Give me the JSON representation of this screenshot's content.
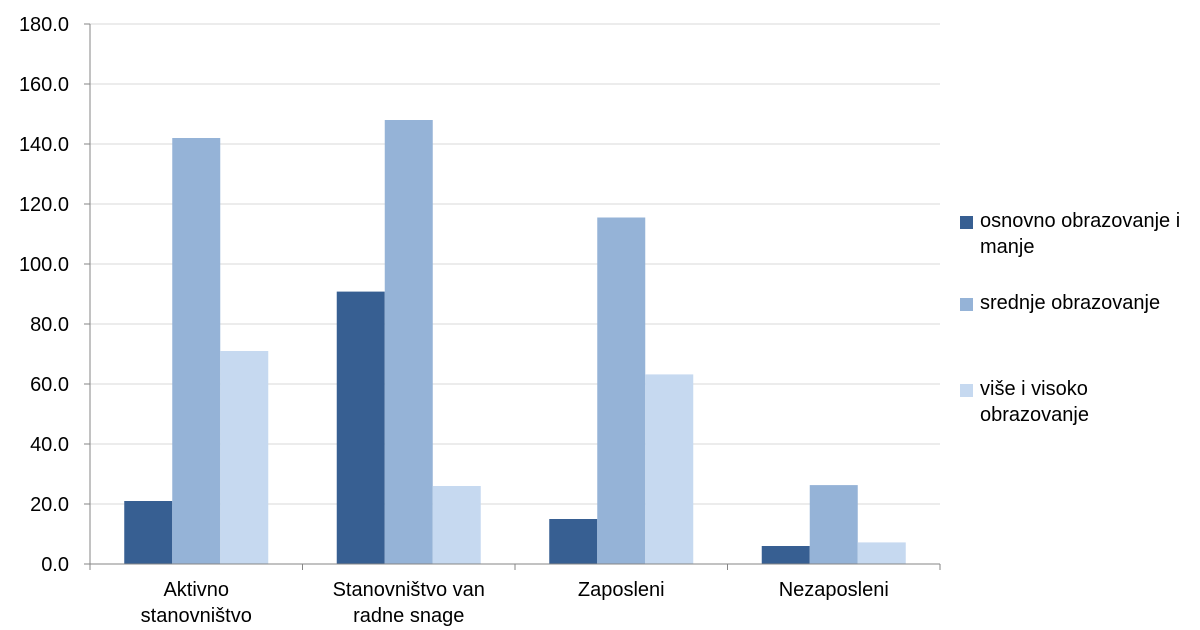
{
  "chart_data": {
    "type": "bar",
    "categories": [
      [
        "Aktivno",
        "stanovništvo"
      ],
      [
        "Stanovništvo van",
        "radne snage"
      ],
      [
        "Zaposleni"
      ],
      [
        "Nezaposleni"
      ]
    ],
    "series": [
      {
        "name": "osnovno obrazovanje i manje",
        "color": "#375f92",
        "values": [
          21.0,
          90.8,
          15.0,
          6.0
        ]
      },
      {
        "name": "srednje obrazovanje",
        "color": "#95b3d7",
        "values": [
          142.0,
          148.0,
          115.5,
          26.3
        ]
      },
      {
        "name": "više i visoko obrazovanje",
        "color": "#c6d9f0",
        "values": [
          71.0,
          26.0,
          63.2,
          7.2
        ]
      }
    ],
    "yticks": [
      "0.0",
      "20.0",
      "40.0",
      "60.0",
      "80.0",
      "100.0",
      "120.0",
      "140.0",
      "160.0",
      "180.0"
    ],
    "ylim": [
      0,
      180
    ],
    "grid": true,
    "gridColor": "#d9d9d9",
    "axisColor": "#868686",
    "legendPosition": "right"
  }
}
